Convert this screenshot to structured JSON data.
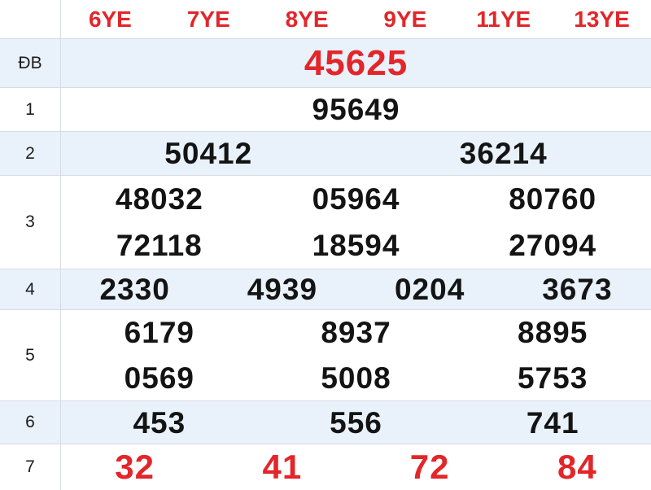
{
  "colors": {
    "accent": "#e2262a",
    "stripe": "#e9f1fa",
    "border": "#d6dce3",
    "ink": "#141414"
  },
  "table": {
    "columns": [
      "6YE",
      "7YE",
      "8YE",
      "9YE",
      "11YE",
      "13YE"
    ],
    "rows": [
      {
        "label": "ĐB",
        "lines": [
          [
            "45625"
          ]
        ]
      },
      {
        "label": "1",
        "lines": [
          [
            "95649"
          ]
        ]
      },
      {
        "label": "2",
        "lines": [
          [
            "50412",
            "36214"
          ]
        ]
      },
      {
        "label": "3",
        "lines": [
          [
            "48032",
            "05964",
            "80760"
          ],
          [
            "72118",
            "18594",
            "27094"
          ]
        ]
      },
      {
        "label": "4",
        "lines": [
          [
            "2330",
            "4939",
            "0204",
            "3673"
          ]
        ]
      },
      {
        "label": "5",
        "lines": [
          [
            "6179",
            "8937",
            "8895"
          ],
          [
            "0569",
            "5008",
            "5753"
          ]
        ]
      },
      {
        "label": "6",
        "lines": [
          [
            "453",
            "556",
            "741"
          ]
        ]
      },
      {
        "label": "7",
        "lines": [
          [
            "32",
            "41",
            "72",
            "84"
          ]
        ]
      }
    ]
  }
}
